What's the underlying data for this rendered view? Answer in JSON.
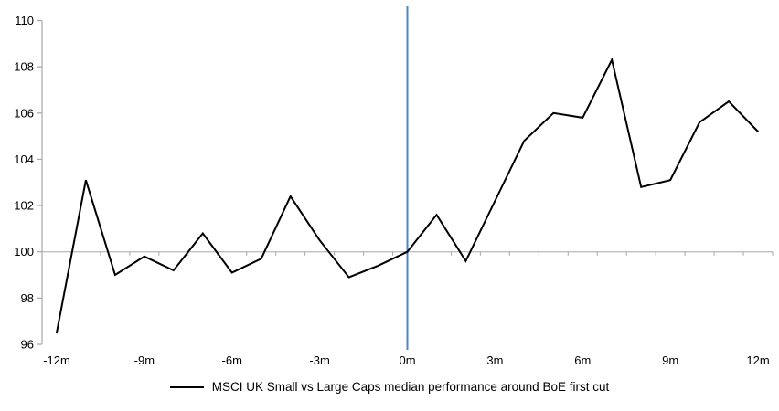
{
  "chart_data": {
    "type": "line",
    "title": "",
    "legend": "MSCI UK Small vs Large Caps median performance around BoE first cut",
    "categories": [
      "-12m",
      "-11m",
      "-10m",
      "-9m",
      "-8m",
      "-7m",
      "-6m",
      "-5m",
      "-4m",
      "-3m",
      "-2m",
      "-1m",
      "0m",
      "1m",
      "2m",
      "3m",
      "4m",
      "5m",
      "6m",
      "7m",
      "8m",
      "9m",
      "10m",
      "11m",
      "12m"
    ],
    "series": [
      {
        "name": "MSCI UK Small vs Large Caps median performance around BoE first cut",
        "color": "#000000",
        "values": [
          96.5,
          103.1,
          99.0,
          99.8,
          99.2,
          100.8,
          99.1,
          99.7,
          102.4,
          100.5,
          98.9,
          99.4,
          100.0,
          101.6,
          99.6,
          102.2,
          104.8,
          106.0,
          105.8,
          108.3,
          102.8,
          103.1,
          105.6,
          106.5,
          105.2
        ]
      }
    ],
    "x_tick_labels": [
      "-12m",
      "-9m",
      "-6m",
      "-3m",
      "0m",
      "3m",
      "6m",
      "9m",
      "12m"
    ],
    "y_ticks": [
      96,
      98,
      100,
      102,
      104,
      106,
      108,
      110
    ],
    "ylim": [
      96,
      110
    ],
    "baseline_value": 100,
    "event_line": {
      "x": "0m",
      "color": "#4E86C5"
    },
    "axis_color": "#A6A6A6",
    "baseline_color": "#BFBFBF",
    "grid": "off",
    "legend_position": "bottom-center"
  }
}
